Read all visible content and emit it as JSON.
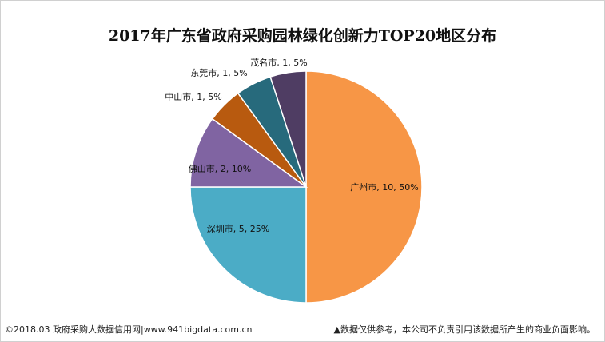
{
  "chart_data": {
    "type": "pie",
    "title": "2017年广东省政府采购园林绿化创新力TOP20地区分布",
    "slices": [
      {
        "label": "广州市, 10, 50%",
        "name": "广州市",
        "value": 10,
        "percent": 50,
        "color": "#f79646"
      },
      {
        "label": "深圳市, 5, 25%",
        "name": "深圳市",
        "value": 5,
        "percent": 25,
        "color": "#4bacc6"
      },
      {
        "label": "佛山市, 2, 10%",
        "name": "佛山市",
        "value": 2,
        "percent": 10,
        "color": "#8064a2"
      },
      {
        "label": "中山市, 1, 5%",
        "name": "中山市",
        "value": 1,
        "percent": 5,
        "color": "#b85a0f"
      },
      {
        "label": "东莞市, 1, 5%",
        "name": "东莞市",
        "value": 1,
        "percent": 5,
        "color": "#276a7c"
      },
      {
        "label": "茂名市, 1, 5%",
        "name": "茂名市",
        "value": 1,
        "percent": 5,
        "color": "#4f3d63"
      }
    ],
    "legend": "none"
  },
  "footer": {
    "source": "©2018.03 政府采购大数据信用网|www.941bigdata.com.cn",
    "disclaimer": "▲数据仅供参考，本公司不负责引用该数据所产生的商业负面影响。"
  }
}
